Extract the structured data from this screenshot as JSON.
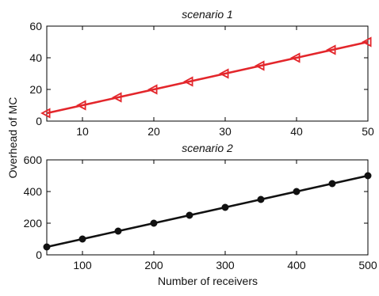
{
  "figure": {
    "ylabel": "Overhead of MC",
    "xlabel": "Number of receivers"
  },
  "chart_data": [
    {
      "type": "line",
      "title": "scenario 1",
      "xlabel": "",
      "ylabel": "",
      "xlim": [
        5,
        50
      ],
      "ylim": [
        0,
        60
      ],
      "xticks": [
        10,
        20,
        30,
        40,
        50
      ],
      "yticks": [
        0,
        20,
        40,
        60
      ],
      "grid": false,
      "series": [
        {
          "color": "#e3262b",
          "marker": "triangle-left",
          "x": [
            5,
            10,
            15,
            20,
            25,
            30,
            35,
            40,
            45,
            50
          ],
          "y": [
            5,
            10,
            15,
            20,
            25,
            30,
            35,
            40,
            45,
            50
          ]
        }
      ]
    },
    {
      "type": "line",
      "title": "scenario 2",
      "xlabel": "Number of receivers",
      "ylabel": "",
      "xlim": [
        50,
        500
      ],
      "ylim": [
        0,
        600
      ],
      "xticks": [
        100,
        200,
        300,
        400,
        500
      ],
      "yticks": [
        0,
        200,
        400,
        600
      ],
      "grid": false,
      "series": [
        {
          "color": "#111111",
          "marker": "circle",
          "x": [
            50,
            100,
            150,
            200,
            250,
            300,
            350,
            400,
            450,
            500
          ],
          "y": [
            50,
            100,
            150,
            200,
            250,
            300,
            350,
            400,
            450,
            500
          ]
        }
      ]
    }
  ]
}
